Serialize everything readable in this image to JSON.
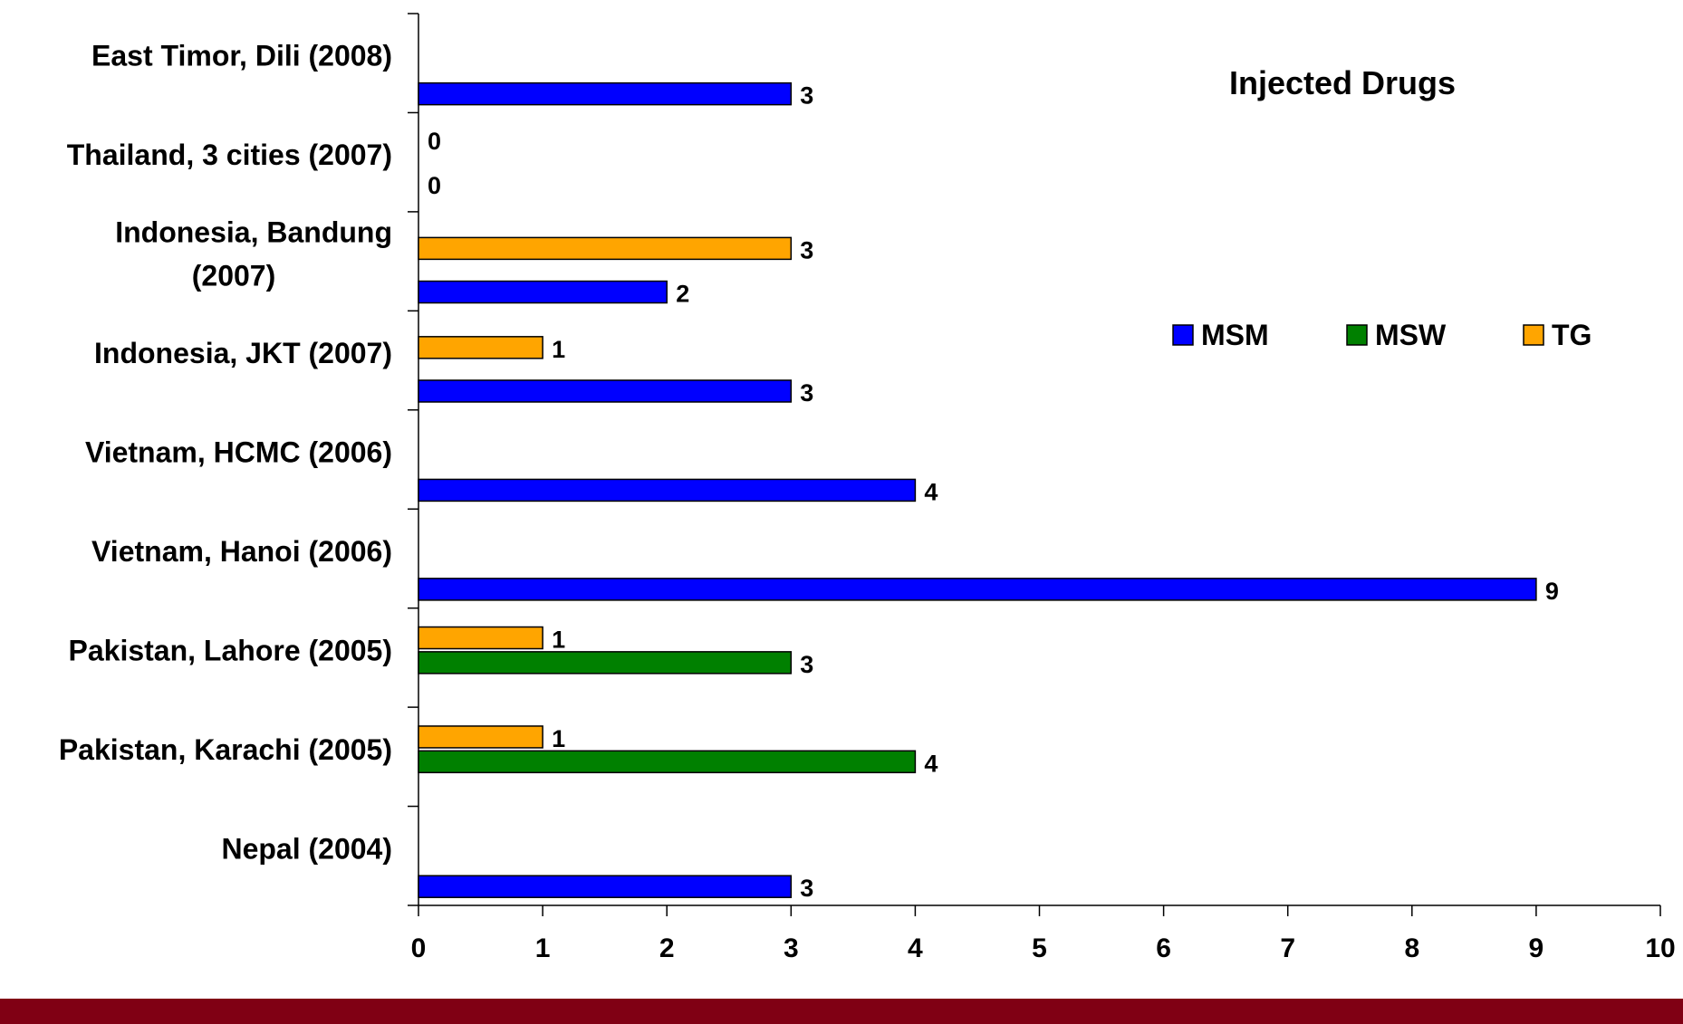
{
  "chart_data": {
    "type": "bar",
    "orientation": "horizontal",
    "title": "Injected Drugs",
    "xlabel": "%",
    "ylabel": "",
    "xlim": [
      0,
      10
    ],
    "xticks": [
      "0",
      "1",
      "2",
      "3",
      "4",
      "5",
      "6",
      "7",
      "8",
      "9",
      "10"
    ],
    "legend_position": "right",
    "grid": false,
    "categories": [
      [
        "East Timor, Dili (2008)"
      ],
      [
        "Thailand, 3 cities (2007)"
      ],
      [
        "Indonesia, Bandung",
        "(2007)"
      ],
      [
        "Indonesia, JKT (2007)"
      ],
      [
        "Vietnam, HCMC (2006)"
      ],
      [
        "Vietnam, Hanoi (2006)"
      ],
      [
        "Pakistan, Lahore (2005)"
      ],
      [
        "Pakistan, Karachi (2005)"
      ],
      [
        "Nepal (2004)"
      ]
    ],
    "series": [
      {
        "name": "MSM",
        "color": "#0000ff",
        "values": [
          3,
          0,
          2,
          3,
          4,
          9,
          null,
          null,
          3
        ]
      },
      {
        "name": "MSW",
        "color": "#008000",
        "values": [
          null,
          null,
          null,
          null,
          null,
          null,
          3,
          4,
          null
        ]
      },
      {
        "name": "TG",
        "color": "#ffa500",
        "values": [
          null,
          0,
          3,
          1,
          null,
          null,
          1,
          1,
          null
        ]
      }
    ]
  }
}
